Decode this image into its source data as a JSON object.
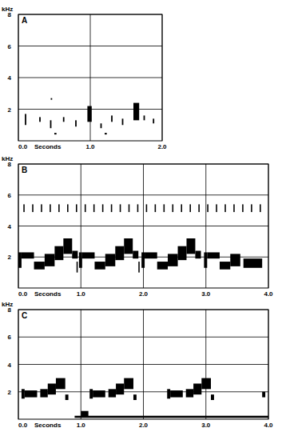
{
  "chart_data": [
    {
      "type": "spectrogram",
      "title": "A",
      "xlabel": "Seconds",
      "ylabel": "kHz",
      "color": "#000000",
      "grid": true,
      "xlim": [
        0,
        2
      ],
      "ylim": [
        0,
        8
      ],
      "xticks": [
        {
          "value": 0,
          "label": "0.0"
        },
        {
          "value": 1,
          "label": "1.0"
        },
        {
          "value": 2,
          "label": "2.0"
        }
      ],
      "yticks": [
        2,
        4,
        6,
        8
      ],
      "notes": [
        {
          "x0": 0.09,
          "x1": 0.11,
          "y0": 1.0,
          "y1": 1.7
        },
        {
          "x0": 0.29,
          "x1": 0.31,
          "y0": 1.2,
          "y1": 1.5
        },
        {
          "x0": 0.44,
          "x1": 0.46,
          "y0": 0.8,
          "y1": 1.3
        },
        {
          "x0": 0.45,
          "x1": 0.47,
          "y0": 2.6,
          "y1": 2.7
        },
        {
          "x0": 0.62,
          "x1": 0.64,
          "y0": 1.2,
          "y1": 1.5
        },
        {
          "x0": 0.79,
          "x1": 0.81,
          "y0": 0.9,
          "y1": 1.3
        },
        {
          "x0": 0.96,
          "x1": 1.02,
          "y0": 1.2,
          "y1": 2.2
        },
        {
          "x0": 1.14,
          "x1": 1.16,
          "y0": 0.8,
          "y1": 1.1
        },
        {
          "x0": 1.29,
          "x1": 1.31,
          "y0": 1.2,
          "y1": 1.6
        },
        {
          "x0": 1.44,
          "x1": 1.46,
          "y0": 1.0,
          "y1": 1.4
        },
        {
          "x0": 1.6,
          "x1": 1.68,
          "y0": 1.3,
          "y1": 2.4
        },
        {
          "x0": 1.74,
          "x1": 1.76,
          "y0": 1.3,
          "y1": 1.6
        },
        {
          "x0": 1.87,
          "x1": 1.89,
          "y0": 1.1,
          "y1": 1.4
        },
        {
          "x0": 0.5,
          "x1": 0.53,
          "y0": 0.4,
          "y1": 0.5
        },
        {
          "x0": 1.2,
          "x1": 1.23,
          "y0": 0.4,
          "y1": 0.5
        }
      ]
    },
    {
      "type": "spectrogram",
      "title": "B",
      "xlabel": "Seconds",
      "ylabel": "kHz",
      "color": "#000000",
      "grid": true,
      "xlim": [
        0,
        4
      ],
      "ylim": [
        0,
        8
      ],
      "xticks": [
        {
          "value": 0,
          "label": "0.0"
        },
        {
          "value": 1,
          "label": "1.0"
        },
        {
          "value": 2,
          "label": "2.0"
        },
        {
          "value": 3,
          "label": "3.0"
        },
        {
          "value": 4,
          "label": "4.0"
        }
      ],
      "yticks": [
        2,
        4,
        6,
        8
      ],
      "notes": [
        {
          "x0": 0.0,
          "x1": 0.05,
          "y0": 1.3,
          "y1": 2.3
        },
        {
          "x0": 0.05,
          "x1": 0.25,
          "y0": 1.9,
          "y1": 2.3
        },
        {
          "x0": 0.25,
          "x1": 0.42,
          "y0": 1.2,
          "y1": 1.7
        },
        {
          "x0": 0.42,
          "x1": 0.58,
          "y0": 1.4,
          "y1": 2.2
        },
        {
          "x0": 0.58,
          "x1": 0.72,
          "y0": 1.8,
          "y1": 2.7
        },
        {
          "x0": 0.72,
          "x1": 0.86,
          "y0": 2.2,
          "y1": 3.2
        },
        {
          "x0": 0.86,
          "x1": 0.95,
          "y0": 1.9,
          "y1": 2.4
        },
        {
          "x0": 0.93,
          "x1": 0.95,
          "y0": 1.0,
          "y1": 1.7
        },
        {
          "x0": 0.97,
          "x1": 1.02,
          "y0": 1.3,
          "y1": 2.3
        },
        {
          "x0": 1.02,
          "x1": 1.22,
          "y0": 1.9,
          "y1": 2.3
        },
        {
          "x0": 1.22,
          "x1": 1.39,
          "y0": 1.2,
          "y1": 1.7
        },
        {
          "x0": 1.39,
          "x1": 1.55,
          "y0": 1.4,
          "y1": 2.2
        },
        {
          "x0": 1.55,
          "x1": 1.69,
          "y0": 1.8,
          "y1": 2.7
        },
        {
          "x0": 1.69,
          "x1": 1.83,
          "y0": 2.2,
          "y1": 3.2
        },
        {
          "x0": 1.83,
          "x1": 1.92,
          "y0": 1.9,
          "y1": 2.4
        },
        {
          "x0": 1.92,
          "x1": 1.94,
          "y0": 1.0,
          "y1": 1.7
        },
        {
          "x0": 1.97,
          "x1": 2.02,
          "y0": 1.3,
          "y1": 2.3
        },
        {
          "x0": 2.02,
          "x1": 2.22,
          "y0": 1.9,
          "y1": 2.3
        },
        {
          "x0": 2.22,
          "x1": 2.39,
          "y0": 1.2,
          "y1": 1.7
        },
        {
          "x0": 2.39,
          "x1": 2.55,
          "y0": 1.4,
          "y1": 2.2
        },
        {
          "x0": 2.55,
          "x1": 2.69,
          "y0": 1.8,
          "y1": 2.7
        },
        {
          "x0": 2.69,
          "x1": 2.83,
          "y0": 2.2,
          "y1": 3.2
        },
        {
          "x0": 2.83,
          "x1": 2.92,
          "y0": 1.9,
          "y1": 2.4
        },
        {
          "x0": 2.97,
          "x1": 3.02,
          "y0": 1.3,
          "y1": 2.3
        },
        {
          "x0": 3.02,
          "x1": 3.22,
          "y0": 1.9,
          "y1": 2.3
        },
        {
          "x0": 3.22,
          "x1": 3.39,
          "y0": 1.2,
          "y1": 1.7
        },
        {
          "x0": 3.39,
          "x1": 3.55,
          "y0": 1.4,
          "y1": 2.2
        },
        {
          "x0": 3.6,
          "x1": 3.9,
          "y0": 1.3,
          "y1": 1.9
        },
        {
          "x0": 0.08,
          "x1": 0.1,
          "y0": 4.9,
          "y1": 5.4
        },
        {
          "x0": 0.22,
          "x1": 0.24,
          "y0": 4.9,
          "y1": 5.4
        },
        {
          "x0": 0.36,
          "x1": 0.38,
          "y0": 4.9,
          "y1": 5.4
        },
        {
          "x0": 0.5,
          "x1": 0.52,
          "y0": 4.9,
          "y1": 5.4
        },
        {
          "x0": 0.64,
          "x1": 0.66,
          "y0": 4.9,
          "y1": 5.4
        },
        {
          "x0": 0.78,
          "x1": 0.8,
          "y0": 4.9,
          "y1": 5.4
        },
        {
          "x0": 0.92,
          "x1": 0.94,
          "y0": 4.9,
          "y1": 5.4
        },
        {
          "x0": 1.06,
          "x1": 1.08,
          "y0": 4.9,
          "y1": 5.4
        },
        {
          "x0": 1.2,
          "x1": 1.22,
          "y0": 4.9,
          "y1": 5.4
        },
        {
          "x0": 1.34,
          "x1": 1.36,
          "y0": 4.9,
          "y1": 5.4
        },
        {
          "x0": 1.48,
          "x1": 1.5,
          "y0": 4.9,
          "y1": 5.4
        },
        {
          "x0": 1.62,
          "x1": 1.64,
          "y0": 4.9,
          "y1": 5.4
        },
        {
          "x0": 1.76,
          "x1": 1.78,
          "y0": 4.9,
          "y1": 5.4
        },
        {
          "x0": 1.9,
          "x1": 1.92,
          "y0": 4.9,
          "y1": 5.4
        },
        {
          "x0": 2.04,
          "x1": 2.06,
          "y0": 4.9,
          "y1": 5.4
        },
        {
          "x0": 2.18,
          "x1": 2.2,
          "y0": 4.9,
          "y1": 5.4
        },
        {
          "x0": 2.32,
          "x1": 2.34,
          "y0": 4.9,
          "y1": 5.4
        },
        {
          "x0": 2.46,
          "x1": 2.48,
          "y0": 4.9,
          "y1": 5.4
        },
        {
          "x0": 2.6,
          "x1": 2.62,
          "y0": 4.9,
          "y1": 5.4
        },
        {
          "x0": 2.74,
          "x1": 2.76,
          "y0": 4.9,
          "y1": 5.4
        },
        {
          "x0": 2.88,
          "x1": 2.9,
          "y0": 4.9,
          "y1": 5.4
        },
        {
          "x0": 3.02,
          "x1": 3.04,
          "y0": 4.9,
          "y1": 5.4
        },
        {
          "x0": 3.16,
          "x1": 3.18,
          "y0": 4.9,
          "y1": 5.4
        },
        {
          "x0": 3.3,
          "x1": 3.32,
          "y0": 4.9,
          "y1": 5.4
        },
        {
          "x0": 3.44,
          "x1": 3.46,
          "y0": 4.9,
          "y1": 5.4
        },
        {
          "x0": 3.58,
          "x1": 3.6,
          "y0": 4.9,
          "y1": 5.4
        },
        {
          "x0": 3.72,
          "x1": 3.74,
          "y0": 4.9,
          "y1": 5.4
        },
        {
          "x0": 3.86,
          "x1": 3.88,
          "y0": 4.9,
          "y1": 5.4
        }
      ]
    },
    {
      "type": "spectrogram",
      "title": "C",
      "xlabel": "Seconds",
      "ylabel": "kHz",
      "color": "#000000",
      "grid": true,
      "xlim": [
        0,
        4
      ],
      "ylim": [
        0,
        8
      ],
      "xticks": [
        {
          "value": 0,
          "label": "0.0"
        },
        {
          "value": 1,
          "label": "1.0"
        },
        {
          "value": 2,
          "label": "2.0"
        },
        {
          "value": 3,
          "label": "3.0"
        },
        {
          "value": 4,
          "label": "4.0"
        }
      ],
      "yticks": [
        2,
        4,
        6,
        8
      ],
      "notes": [
        {
          "x0": 0.05,
          "x1": 0.1,
          "y0": 1.5,
          "y1": 2.2
        },
        {
          "x0": 0.1,
          "x1": 0.3,
          "y0": 1.6,
          "y1": 2.1
        },
        {
          "x0": 0.35,
          "x1": 0.47,
          "y0": 1.6,
          "y1": 2.2
        },
        {
          "x0": 0.47,
          "x1": 0.6,
          "y0": 1.8,
          "y1": 2.6
        },
        {
          "x0": 0.6,
          "x1": 0.75,
          "y0": 2.2,
          "y1": 3.0
        },
        {
          "x0": 0.75,
          "x1": 0.8,
          "y0": 1.4,
          "y1": 1.8
        },
        {
          "x0": 1.14,
          "x1": 1.19,
          "y0": 1.5,
          "y1": 2.2
        },
        {
          "x0": 1.19,
          "x1": 1.39,
          "y0": 1.6,
          "y1": 2.1
        },
        {
          "x0": 1.44,
          "x1": 1.56,
          "y0": 1.6,
          "y1": 2.2
        },
        {
          "x0": 1.56,
          "x1": 1.69,
          "y0": 1.8,
          "y1": 2.6
        },
        {
          "x0": 1.69,
          "x1": 1.84,
          "y0": 2.2,
          "y1": 3.0
        },
        {
          "x0": 1.84,
          "x1": 1.89,
          "y0": 1.4,
          "y1": 1.8
        },
        {
          "x0": 2.38,
          "x1": 2.43,
          "y0": 1.5,
          "y1": 2.2
        },
        {
          "x0": 2.43,
          "x1": 2.63,
          "y0": 1.6,
          "y1": 2.1
        },
        {
          "x0": 2.68,
          "x1": 2.8,
          "y0": 1.6,
          "y1": 2.2
        },
        {
          "x0": 2.8,
          "x1": 2.93,
          "y0": 1.8,
          "y1": 2.6
        },
        {
          "x0": 2.93,
          "x1": 3.08,
          "y0": 2.2,
          "y1": 3.0
        },
        {
          "x0": 3.08,
          "x1": 3.13,
          "y0": 1.4,
          "y1": 1.8
        },
        {
          "x0": 0.9,
          "x1": 4.0,
          "y0": 0.1,
          "y1": 0.25
        },
        {
          "x0": 1.0,
          "x1": 1.12,
          "y0": 0.2,
          "y1": 0.6
        },
        {
          "x0": 3.9,
          "x1": 3.95,
          "y0": 1.6,
          "y1": 2.0
        }
      ]
    }
  ]
}
